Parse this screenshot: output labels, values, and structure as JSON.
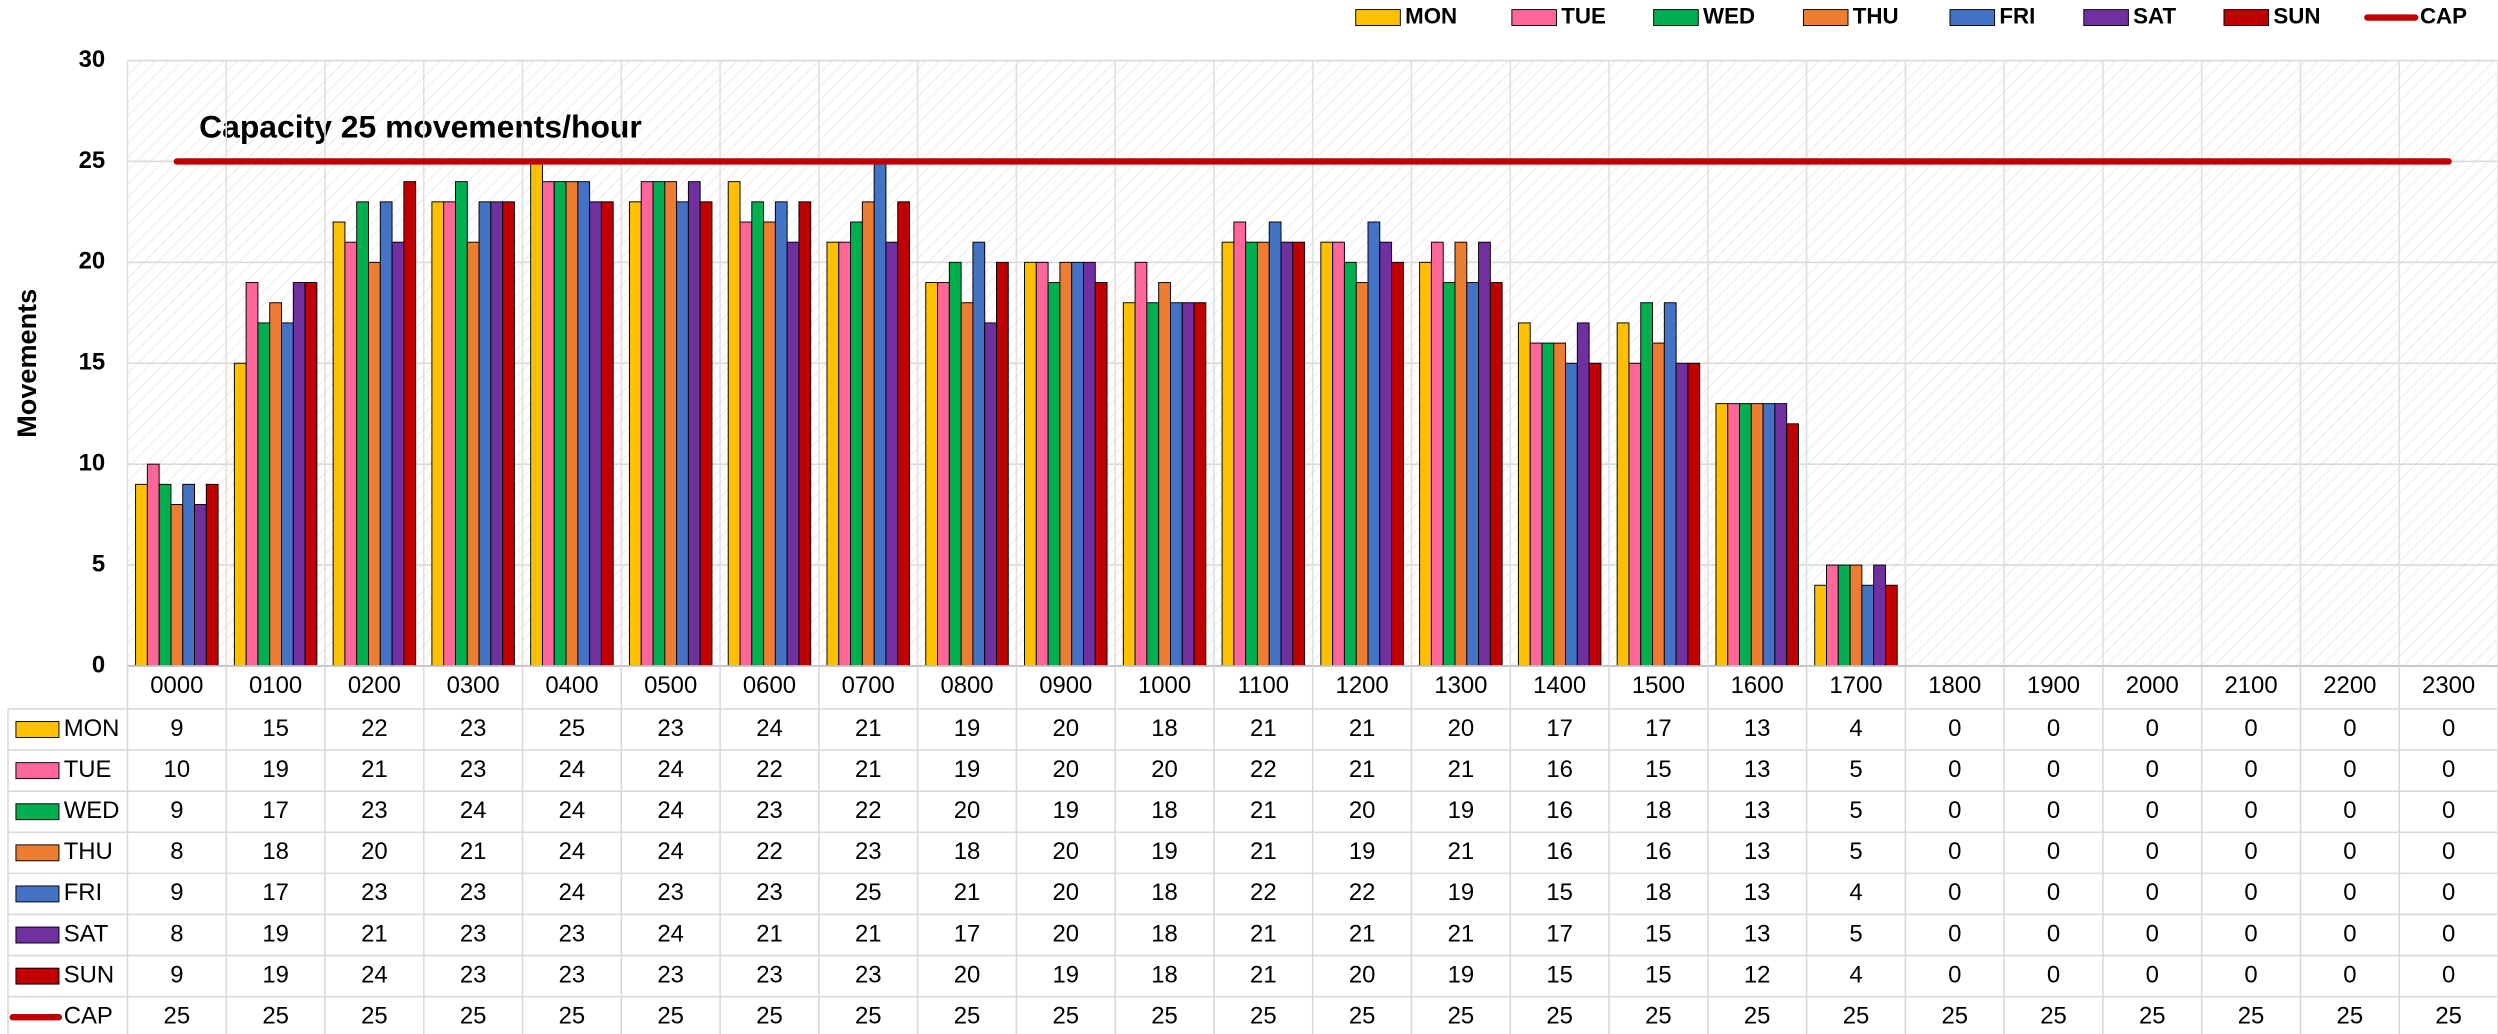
{
  "chart_data": {
    "type": "bar",
    "y_label": "Movements",
    "annotation": "Capacity 25 movements/hour",
    "categories": [
      "0000",
      "0100",
      "0200",
      "0300",
      "0400",
      "0500",
      "0600",
      "0700",
      "0800",
      "0900",
      "1000",
      "1100",
      "1200",
      "1300",
      "1400",
      "1500",
      "1600",
      "1700",
      "1800",
      "1900",
      "2000",
      "2100",
      "2200",
      "2300"
    ],
    "series": [
      {
        "name": "MON",
        "color": "#ffc000",
        "values": [
          9,
          15,
          22,
          23,
          25,
          23,
          24,
          21,
          19,
          20,
          18,
          21,
          21,
          20,
          17,
          17,
          13,
          4,
          0,
          0,
          0,
          0,
          0,
          0
        ]
      },
      {
        "name": "TUE",
        "color": "#ff6699",
        "values": [
          10,
          19,
          21,
          23,
          24,
          24,
          22,
          21,
          19,
          20,
          20,
          22,
          21,
          21,
          16,
          15,
          13,
          5,
          0,
          0,
          0,
          0,
          0,
          0
        ]
      },
      {
        "name": "WED",
        "color": "#00b050",
        "values": [
          9,
          17,
          23,
          24,
          24,
          24,
          23,
          22,
          20,
          19,
          18,
          21,
          20,
          19,
          16,
          18,
          13,
          5,
          0,
          0,
          0,
          0,
          0,
          0
        ]
      },
      {
        "name": "THU",
        "color": "#ed7d31",
        "values": [
          8,
          18,
          20,
          21,
          24,
          24,
          22,
          23,
          18,
          20,
          19,
          21,
          19,
          21,
          16,
          16,
          13,
          5,
          0,
          0,
          0,
          0,
          0,
          0
        ]
      },
      {
        "name": "FRI",
        "color": "#4472c4",
        "values": [
          9,
          17,
          23,
          23,
          24,
          23,
          23,
          25,
          21,
          20,
          18,
          22,
          22,
          19,
          15,
          18,
          13,
          4,
          0,
          0,
          0,
          0,
          0,
          0
        ]
      },
      {
        "name": "SAT",
        "color": "#7030a0",
        "values": [
          8,
          19,
          21,
          23,
          23,
          24,
          21,
          21,
          17,
          20,
          18,
          21,
          21,
          21,
          17,
          15,
          13,
          5,
          0,
          0,
          0,
          0,
          0,
          0
        ]
      },
      {
        "name": "SUN",
        "color": "#c00000",
        "values": [
          9,
          19,
          24,
          23,
          23,
          23,
          23,
          23,
          20,
          19,
          18,
          21,
          20,
          19,
          15,
          15,
          12,
          4,
          0,
          0,
          0,
          0,
          0,
          0
        ]
      },
      {
        "name": "CAP",
        "color": "#c00000",
        "type": "line",
        "values": [
          25,
          25,
          25,
          25,
          25,
          25,
          25,
          25,
          25,
          25,
          25,
          25,
          25,
          25,
          25,
          25,
          25,
          25,
          25,
          25,
          25,
          25,
          25,
          25
        ]
      }
    ],
    "ylim": [
      0,
      30
    ],
    "yticks": [
      0,
      5,
      10,
      15,
      20,
      25,
      30
    ],
    "grid": true,
    "legend": "top-right",
    "data_table": true
  }
}
